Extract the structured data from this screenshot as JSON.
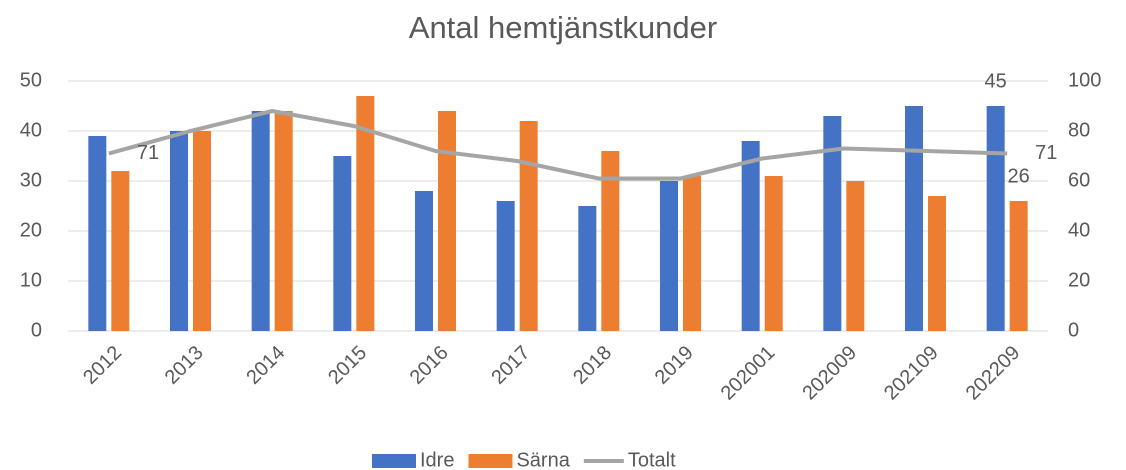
{
  "chart_data": {
    "type": "bar",
    "title": "Antal hemtjänstkunder",
    "categories": [
      "2012",
      "2013",
      "2014",
      "2015",
      "2016",
      "2017",
      "2018",
      "2019",
      "202001",
      "202009",
      "202109",
      "202209"
    ],
    "series": [
      {
        "name": "Idre",
        "color": "#4472c4",
        "values": [
          39,
          40,
          44,
          35,
          28,
          26,
          25,
          30,
          38,
          43,
          45,
          45
        ],
        "value_labels": [
          null,
          null,
          null,
          null,
          null,
          null,
          null,
          null,
          null,
          null,
          null,
          "45"
        ]
      },
      {
        "name": "Särna",
        "color": "#ed7d31",
        "values": [
          32,
          40,
          44,
          47,
          44,
          42,
          36,
          31,
          31,
          30,
          27,
          26
        ],
        "value_labels": [
          null,
          null,
          null,
          null,
          null,
          null,
          null,
          null,
          null,
          null,
          null,
          "26"
        ]
      },
      {
        "name": "Totalt",
        "color": "#a5a5a5",
        "type": "line",
        "axis": "y2",
        "values": [
          71,
          80,
          88,
          82,
          72,
          68,
          61,
          61,
          69,
          73,
          72,
          71
        ],
        "value_labels": [
          "71",
          null,
          null,
          null,
          null,
          null,
          null,
          null,
          null,
          null,
          null,
          "71"
        ]
      }
    ],
    "ylim": [
      0,
      50
    ],
    "yticks": [
      0,
      10,
      20,
      30,
      40,
      50
    ],
    "y2lim": [
      0,
      100
    ],
    "y2ticks": [
      0,
      20,
      40,
      60,
      80,
      100
    ],
    "grid": true,
    "legend": "bottom"
  }
}
